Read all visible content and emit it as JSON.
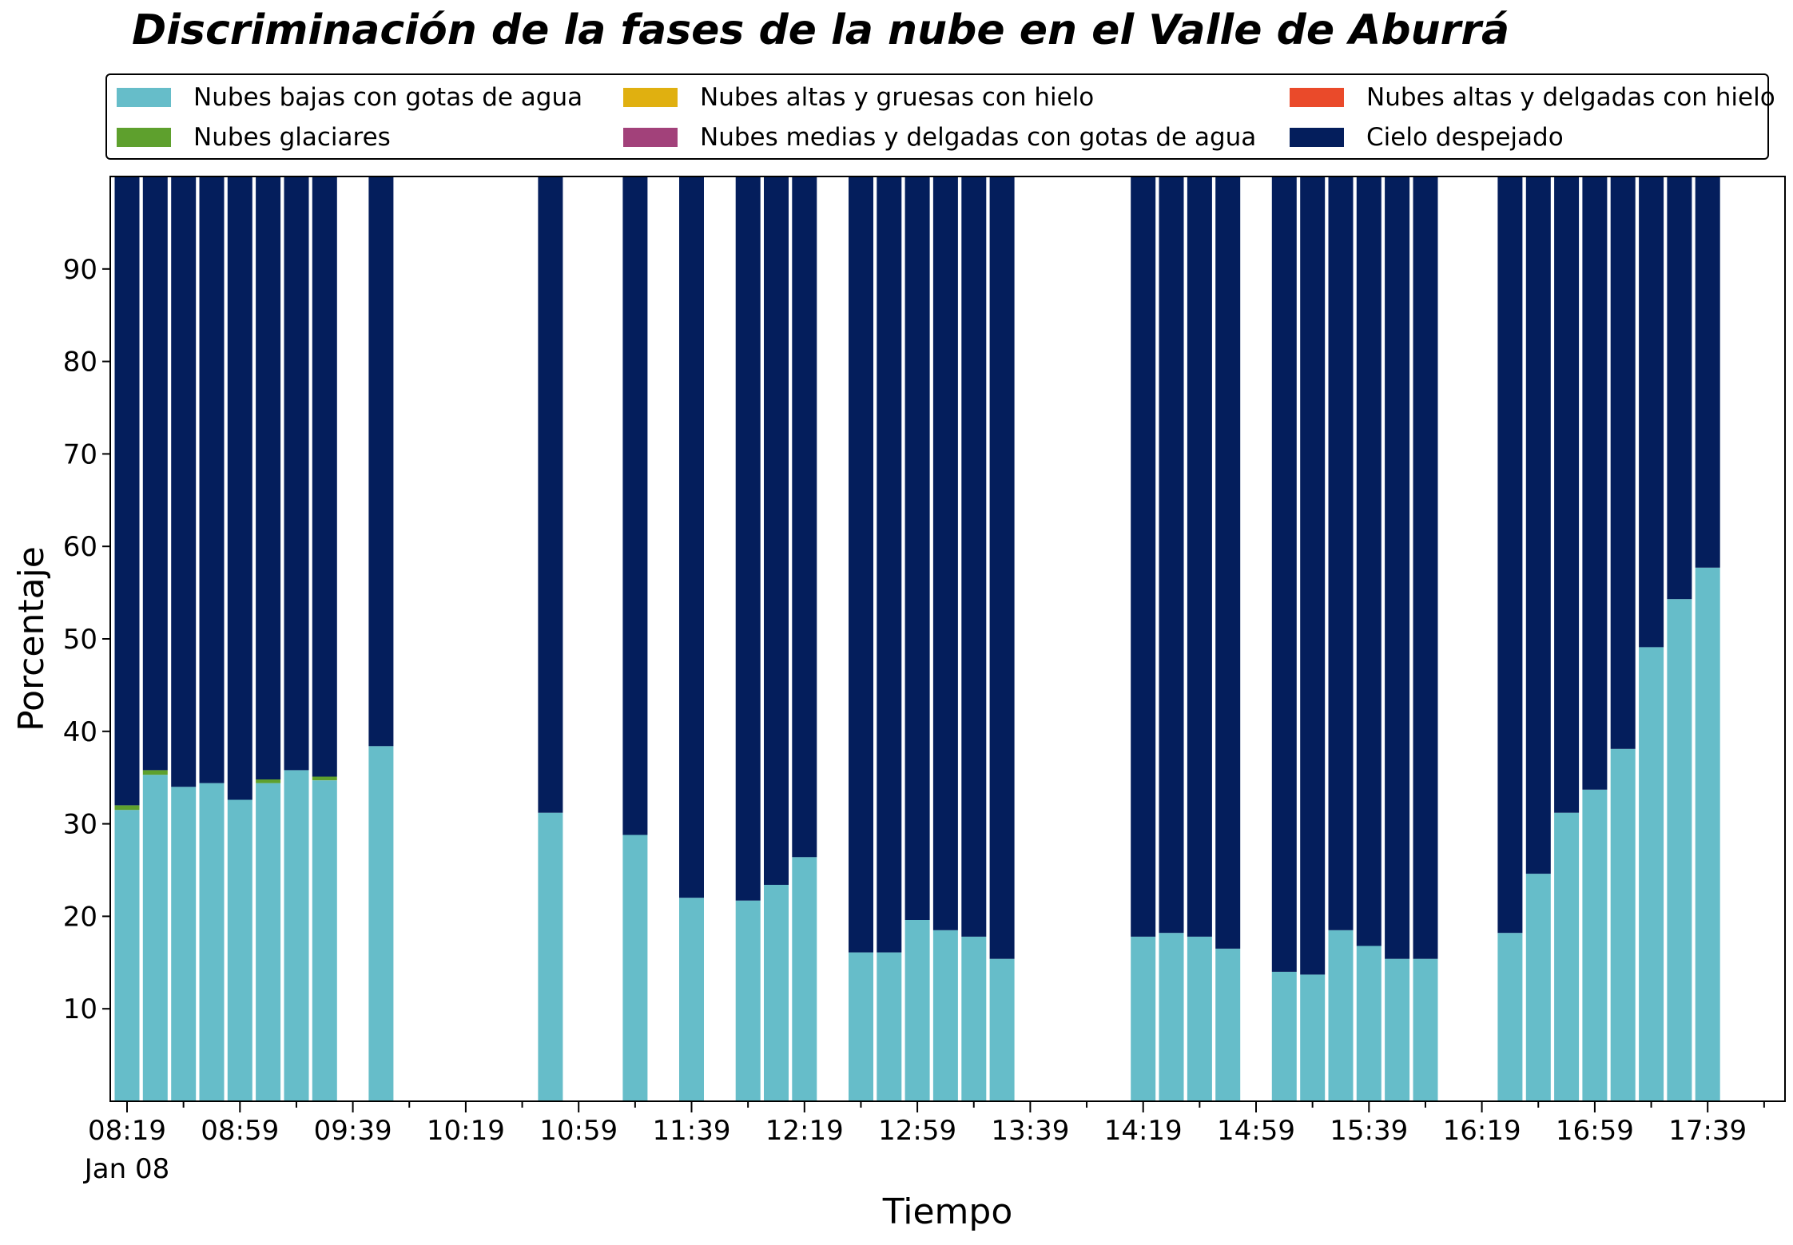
{
  "chart_data": {
    "type": "bar",
    "stacked": true,
    "title": "Discriminación de la fases de la nube en el Valle de Aburrá",
    "xlabel": "Tiempo",
    "ylabel": "Porcentaje",
    "ylim": [
      0,
      100
    ],
    "yticks": [
      10,
      20,
      30,
      40,
      50,
      60,
      70,
      80,
      90
    ],
    "xticks": [
      "08:19",
      "08:59",
      "09:39",
      "10:19",
      "10:59",
      "11:39",
      "12:19",
      "12:59",
      "13:39",
      "14:19",
      "14:59",
      "15:39",
      "16:19",
      "16:59",
      "17:39"
    ],
    "x_secondary_label": "Jan 08",
    "legend_position": "top",
    "series": [
      {
        "name": "Nubes bajas con gotas de agua",
        "color": "#66bdc9"
      },
      {
        "name": "Nubes glaciares",
        "color": "#5ea02d"
      },
      {
        "name": "Nubes altas y gruesas con hielo",
        "color": "#e0b010"
      },
      {
        "name": "Nubes medias y delgadas con gotas de agua",
        "color": "#a2417a"
      },
      {
        "name": "Nubes altas y delgadas con hielo",
        "color": "#ea4a2a"
      },
      {
        "name": "Cielo despejado",
        "color": "#041e5c"
      }
    ],
    "bars": [
      {
        "time": "08:19",
        "values": [
          31.5,
          0.5,
          0,
          0,
          0,
          68.0
        ]
      },
      {
        "time": "08:29",
        "values": [
          35.3,
          0.5,
          0,
          0,
          0,
          64.2
        ]
      },
      {
        "time": "08:39",
        "values": [
          34.0,
          0,
          0,
          0,
          0,
          66.0
        ]
      },
      {
        "time": "08:49",
        "values": [
          34.4,
          0,
          0,
          0,
          0,
          65.6
        ]
      },
      {
        "time": "08:59",
        "values": [
          32.6,
          0,
          0,
          0,
          0,
          67.4
        ]
      },
      {
        "time": "09:09",
        "values": [
          34.4,
          0.4,
          0,
          0,
          0,
          65.2
        ]
      },
      {
        "time": "09:19",
        "values": [
          35.8,
          0,
          0,
          0,
          0,
          64.2
        ]
      },
      {
        "time": "09:29",
        "values": [
          34.7,
          0.4,
          0,
          0,
          0,
          64.9
        ]
      },
      {
        "time": "09:49",
        "values": [
          38.4,
          0,
          0,
          0,
          0,
          61.6
        ]
      },
      {
        "time": "10:49",
        "values": [
          31.2,
          0,
          0,
          0,
          0,
          68.8
        ]
      },
      {
        "time": "11:19",
        "values": [
          28.8,
          0,
          0,
          0,
          0,
          71.2
        ]
      },
      {
        "time": "11:39",
        "values": [
          22.0,
          0,
          0,
          0,
          0,
          78.0
        ]
      },
      {
        "time": "11:59",
        "values": [
          21.7,
          0,
          0,
          0,
          0,
          78.3
        ]
      },
      {
        "time": "12:09",
        "values": [
          23.4,
          0,
          0,
          0,
          0,
          76.6
        ]
      },
      {
        "time": "12:19",
        "values": [
          26.4,
          0,
          0,
          0,
          0,
          73.6
        ]
      },
      {
        "time": "12:39",
        "values": [
          16.1,
          0,
          0,
          0,
          0,
          83.9
        ]
      },
      {
        "time": "12:49",
        "values": [
          16.1,
          0,
          0,
          0,
          0,
          83.9
        ]
      },
      {
        "time": "12:59",
        "values": [
          19.6,
          0,
          0,
          0,
          0,
          80.4
        ]
      },
      {
        "time": "13:09",
        "values": [
          18.5,
          0,
          0,
          0,
          0,
          81.5
        ]
      },
      {
        "time": "13:19",
        "values": [
          17.8,
          0,
          0,
          0,
          0,
          82.2
        ]
      },
      {
        "time": "13:29",
        "values": [
          15.4,
          0,
          0,
          0,
          0,
          84.6
        ]
      },
      {
        "time": "14:19",
        "values": [
          17.8,
          0,
          0,
          0,
          0,
          82.2
        ]
      },
      {
        "time": "14:29",
        "values": [
          18.2,
          0,
          0,
          0,
          0,
          81.8
        ]
      },
      {
        "time": "14:39",
        "values": [
          17.8,
          0,
          0,
          0,
          0,
          82.2
        ]
      },
      {
        "time": "14:49",
        "values": [
          16.5,
          0,
          0,
          0,
          0,
          83.5
        ]
      },
      {
        "time": "15:09",
        "values": [
          14.0,
          0,
          0,
          0,
          0,
          86.0
        ]
      },
      {
        "time": "15:19",
        "values": [
          13.7,
          0,
          0,
          0,
          0,
          86.3
        ]
      },
      {
        "time": "15:29",
        "values": [
          18.5,
          0,
          0,
          0,
          0,
          81.5
        ]
      },
      {
        "time": "15:39",
        "values": [
          16.8,
          0,
          0,
          0,
          0,
          83.2
        ]
      },
      {
        "time": "15:49",
        "values": [
          15.4,
          0,
          0,
          0,
          0,
          84.6
        ]
      },
      {
        "time": "15:59",
        "values": [
          15.4,
          0,
          0,
          0,
          0,
          84.6
        ]
      },
      {
        "time": "16:29",
        "values": [
          18.2,
          0,
          0,
          0,
          0,
          81.8
        ]
      },
      {
        "time": "16:39",
        "values": [
          24.6,
          0,
          0,
          0,
          0,
          75.4
        ]
      },
      {
        "time": "16:49",
        "values": [
          31.2,
          0,
          0,
          0,
          0,
          68.8
        ]
      },
      {
        "time": "16:59",
        "values": [
          33.7,
          0,
          0,
          0,
          0,
          66.3
        ]
      },
      {
        "time": "17:09",
        "values": [
          38.1,
          0,
          0,
          0,
          0,
          61.9
        ]
      },
      {
        "time": "17:19",
        "values": [
          49.1,
          0,
          0,
          0,
          0,
          50.9
        ]
      },
      {
        "time": "17:29",
        "values": [
          54.3,
          0,
          0,
          0,
          0,
          45.7
        ]
      },
      {
        "time": "17:39",
        "values": [
          57.7,
          0,
          0,
          0,
          0,
          42.3
        ]
      }
    ]
  }
}
